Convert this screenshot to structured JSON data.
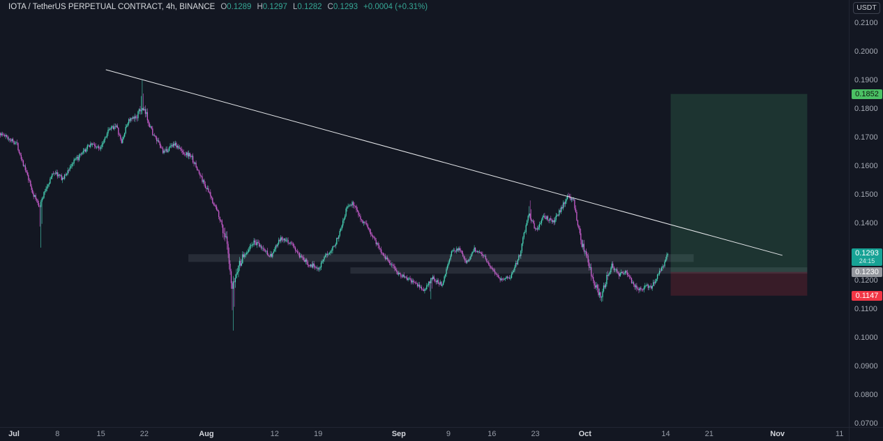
{
  "header": {
    "title": "IOTA / TetherUS PERPETUAL CONTRACT, 4h, BINANCE",
    "o_label": "O",
    "o_value": "0.1289",
    "h_label": "H",
    "h_value": "0.1297",
    "l_label": "L",
    "l_value": "0.1282",
    "c_label": "C",
    "c_value": "0.1293",
    "change": "+0.0004 (+0.31%)"
  },
  "axis": {
    "currency_button": "USDT",
    "price_ticks": [
      "0.2100",
      "0.2000",
      "0.1900",
      "0.1800",
      "0.1700",
      "0.1600",
      "0.1500",
      "0.1400",
      "0.1200",
      "0.1100",
      "0.1000",
      "0.0900",
      "0.0800",
      "0.0700"
    ],
    "time_ticks": [
      {
        "label": "Jul",
        "day": 0,
        "major": true
      },
      {
        "label": "8",
        "day": 7
      },
      {
        "label": "15",
        "day": 14
      },
      {
        "label": "22",
        "day": 21
      },
      {
        "label": "Aug",
        "day": 31,
        "major": true
      },
      {
        "label": "12",
        "day": 42
      },
      {
        "label": "19",
        "day": 49
      },
      {
        "label": "Sep",
        "day": 62,
        "major": true
      },
      {
        "label": "9",
        "day": 70
      },
      {
        "label": "16",
        "day": 77
      },
      {
        "label": "23",
        "day": 84
      },
      {
        "label": "Oct",
        "day": 92,
        "major": true
      },
      {
        "label": "14",
        "day": 105
      },
      {
        "label": "21",
        "day": 112
      },
      {
        "label": "Nov",
        "day": 123,
        "major": true
      },
      {
        "label": "11",
        "day": 133
      }
    ]
  },
  "price_labels": {
    "target": "0.1852",
    "last": "0.1293",
    "countdown": "24:15",
    "entry": "0.1230",
    "stop": "0.1147"
  },
  "chart_data": {
    "type": "candlestick",
    "title": "IOTA / TetherUS PERPETUAL CONTRACT, 4h, BINANCE",
    "symbol": "IOTA / TetherUS Perpetual",
    "exchange": "BINANCE",
    "timeframe": "4h",
    "grid": false,
    "last_ohlc": {
      "open": 0.1289,
      "high": 0.1297,
      "low": 0.1282,
      "close": 0.1293,
      "change": 0.0004,
      "change_pct": 0.31
    },
    "x_day_zero": "Jul 1",
    "x_range_days": [
      -2.25,
      134.5
    ],
    "y_range_price": [
      0.06878,
      0.21805
    ],
    "price_tick_step": 0.01,
    "up_color": "#49d9bb",
    "down_color": "#cc5fd1",
    "price_path": [
      [
        -2.25,
        0.1715
      ],
      [
        -1,
        0.17
      ],
      [
        0.5,
        0.168
      ],
      [
        2,
        0.158
      ],
      [
        3.2,
        0.15
      ],
      [
        4.2,
        0.146
      ],
      [
        5.2,
        0.152
      ],
      [
        6.5,
        0.158
      ],
      [
        8,
        0.1555
      ],
      [
        9.5,
        0.161
      ],
      [
        11,
        0.164
      ],
      [
        12.5,
        0.168
      ],
      [
        13.8,
        0.166
      ],
      [
        15.2,
        0.172
      ],
      [
        16.5,
        0.1745
      ],
      [
        17.4,
        0.168
      ],
      [
        18.5,
        0.176
      ],
      [
        19.5,
        0.1765
      ],
      [
        20.6,
        0.18
      ],
      [
        21.4,
        0.178
      ],
      [
        22.5,
        0.171
      ],
      [
        24.3,
        0.1645
      ],
      [
        25.8,
        0.168
      ],
      [
        27.2,
        0.165
      ],
      [
        28.6,
        0.1635
      ],
      [
        30,
        0.157
      ],
      [
        31.5,
        0.1505
      ],
      [
        33,
        0.1435
      ],
      [
        34.3,
        0.134
      ],
      [
        35.2,
        0.116
      ],
      [
        36.2,
        0.125
      ],
      [
        37.5,
        0.13
      ],
      [
        38.8,
        0.1335
      ],
      [
        40.2,
        0.131
      ],
      [
        41.5,
        0.1285
      ],
      [
        43,
        0.1345
      ],
      [
        44.8,
        0.133
      ],
      [
        46.2,
        0.128
      ],
      [
        47.8,
        0.1255
      ],
      [
        49.2,
        0.1245
      ],
      [
        50.5,
        0.129
      ],
      [
        52,
        0.1335
      ],
      [
        53.8,
        0.146
      ],
      [
        54.8,
        0.147
      ],
      [
        56,
        0.1415
      ],
      [
        57.5,
        0.137
      ],
      [
        59,
        0.131
      ],
      [
        60.5,
        0.1265
      ],
      [
        62,
        0.1225
      ],
      [
        63.5,
        0.1205
      ],
      [
        65,
        0.1185
      ],
      [
        66.2,
        0.1165
      ],
      [
        67.5,
        0.121
      ],
      [
        69,
        0.1185
      ],
      [
        70.5,
        0.1295
      ],
      [
        71.8,
        0.1315
      ],
      [
        73,
        0.126
      ],
      [
        74.2,
        0.131
      ],
      [
        75.5,
        0.1295
      ],
      [
        77,
        0.1245
      ],
      [
        78.5,
        0.1205
      ],
      [
        80,
        0.121
      ],
      [
        81.5,
        0.1285
      ],
      [
        83,
        0.1435
      ],
      [
        84.2,
        0.1375
      ],
      [
        85.5,
        0.1425
      ],
      [
        87,
        0.1405
      ],
      [
        88.3,
        0.1455
      ],
      [
        89.3,
        0.1495
      ],
      [
        90.3,
        0.1475
      ],
      [
        91.3,
        0.1345
      ],
      [
        92.5,
        0.127
      ],
      [
        93.6,
        0.1185
      ],
      [
        94.6,
        0.1145
      ],
      [
        95.6,
        0.121
      ],
      [
        96.4,
        0.1255
      ],
      [
        97.5,
        0.122
      ],
      [
        98.6,
        0.1235
      ],
      [
        99.6,
        0.1195
      ],
      [
        100.8,
        0.1168
      ],
      [
        101.8,
        0.118
      ],
      [
        102.8,
        0.1178
      ],
      [
        103.8,
        0.122
      ],
      [
        104.6,
        0.1245
      ],
      [
        105.4,
        0.1293
      ]
    ],
    "wick_spikes": [
      {
        "day": 4.2,
        "side": "low",
        "price": 0.1315
      },
      {
        "day": 20.6,
        "side": "high",
        "price": 0.19
      },
      {
        "day": 35.2,
        "side": "low",
        "price": 0.1025
      },
      {
        "day": 67.0,
        "side": "low",
        "price": 0.1135
      },
      {
        "day": 83.0,
        "side": "high",
        "price": 0.148
      },
      {
        "day": 89.3,
        "side": "high",
        "price": 0.15
      },
      {
        "day": 94.6,
        "side": "low",
        "price": 0.1125
      }
    ],
    "annotations": {
      "trendline": {
        "from_day": 14.8,
        "from_price": 0.1937,
        "to_day": 123.8,
        "to_price": 0.1288,
        "color": "#e7e9ec"
      },
      "long_position": {
        "entry": 0.123,
        "target": 0.1852,
        "stop": 0.1147,
        "from_day": 105.8,
        "to_day": 127.8,
        "profit_fill": "rgba(84,204,128,0.16)",
        "loss_fill": "rgba(242,54,69,0.17)"
      },
      "zones": [
        {
          "from_day": 28.1,
          "to_day": 109.5,
          "price_top": 0.1292,
          "price_bottom": 0.1265,
          "fill": "rgba(178,184,198,0.13)"
        },
        {
          "from_day": 54.2,
          "to_day": 127.8,
          "price_top": 0.1246,
          "price_bottom": 0.1224,
          "fill": "rgba(178,184,198,0.13)"
        }
      ]
    }
  }
}
